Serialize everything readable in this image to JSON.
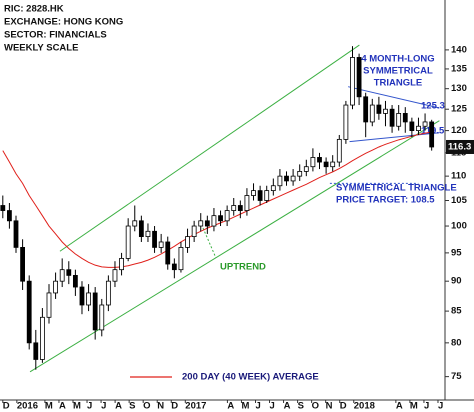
{
  "chart_data": {
    "type": "candlestick",
    "annotations": [
      "RIC: 2828.HK",
      "EXCHANGE: HONG KONG",
      "SECTOR: FINANCIALS",
      "WEEKLY SCALE"
    ],
    "triangle_note": [
      "4 MONTH-LONG",
      "SYMMETRICAL",
      "TRIANGLE"
    ],
    "target_note": [
      "SYMMETRICAL TRIANGLE",
      "PRICE TARGET: 108.5"
    ],
    "uptrend_note": "UPTREND",
    "log_scale": true,
    "xlim": [
      -0.2,
      31.5
    ],
    "ylim": [
      72,
      154
    ],
    "yticks": [
      75,
      80,
      85,
      90,
      95,
      100,
      105,
      110,
      115,
      120,
      125,
      130,
      135,
      140
    ],
    "xticks": [
      {
        "value": 0,
        "label": "D"
      },
      {
        "value": 1,
        "label": "2016"
      },
      {
        "value": 3,
        "label": "M"
      },
      {
        "value": 4,
        "label": "A"
      },
      {
        "value": 5,
        "label": "M"
      },
      {
        "value": 6,
        "label": "J"
      },
      {
        "value": 7,
        "label": "J"
      },
      {
        "value": 8,
        "label": "A"
      },
      {
        "value": 9,
        "label": "S"
      },
      {
        "value": 10,
        "label": "O"
      },
      {
        "value": 11,
        "label": "N"
      },
      {
        "value": 12,
        "label": "D"
      },
      {
        "value": 13,
        "label": "2017"
      },
      {
        "value": 16,
        "label": "A"
      },
      {
        "value": 17,
        "label": "M"
      },
      {
        "value": 18,
        "label": "J"
      },
      {
        "value": 19,
        "label": "J"
      },
      {
        "value": 20,
        "label": "A"
      },
      {
        "value": 21,
        "label": "S"
      },
      {
        "value": 22,
        "label": "O"
      },
      {
        "value": 23,
        "label": "N"
      },
      {
        "value": 24,
        "label": "D"
      },
      {
        "value": 25,
        "label": "2018"
      },
      {
        "value": 28,
        "label": "A"
      },
      {
        "value": 29,
        "label": "M"
      },
      {
        "value": 30,
        "label": "J"
      },
      {
        "value": 31,
        "label": "J"
      }
    ],
    "x": [
      0,
      0.47,
      0.94,
      1.41,
      1.88,
      2.35,
      2.82,
      3.29,
      3.76,
      4.23,
      4.7,
      5.17,
      5.64,
      6.11,
      6.58,
      7.05,
      7.52,
      7.99,
      8.46,
      8.93,
      9.4,
      9.87,
      10.34,
      10.81,
      11.28,
      11.75,
      12.22,
      12.69,
      13.16,
      13.63,
      14.1,
      14.57,
      15.04,
      15.51,
      15.98,
      16.45,
      16.92,
      17.39,
      17.86,
      18.33,
      18.8,
      19.27,
      19.74,
      20.21,
      20.68,
      21.15,
      21.62,
      22.09,
      22.56,
      23.03,
      23.5,
      23.97,
      24.44,
      24.91,
      25.38,
      25.85,
      26.32,
      26.79,
      27.26,
      27.73,
      28.2,
      28.67,
      29.14,
      29.61,
      30.08,
      30.55
    ],
    "series": [
      {
        "up_color": "#ffffff",
        "down_color": "#000000",
        "outline": "#000000",
        "open": [
          104,
          103,
          101,
          96,
          90,
          80,
          77.5,
          84,
          88,
          90,
          92,
          91,
          89,
          86,
          88,
          82,
          86,
          90,
          92,
          94,
          100,
          101,
          98,
          99,
          96,
          97,
          93,
          92,
          96,
          98,
          100,
          101,
          100,
          102,
          101,
          103,
          104,
          103,
          106,
          107,
          105,
          107,
          108,
          110,
          109,
          110,
          111,
          112,
          114,
          113,
          112,
          113,
          118,
          126,
          138,
          128,
          122,
          126,
          124,
          125,
          121,
          124,
          122,
          120,
          121,
          122
        ],
        "high": [
          106,
          104.5,
          102,
          97.5,
          91,
          82,
          85.5,
          89.5,
          91.5,
          94,
          93.5,
          92,
          90,
          89.5,
          89,
          87,
          91,
          93.5,
          95,
          101.5,
          104,
          102,
          100.5,
          100,
          98.5,
          98,
          94,
          97,
          99.5,
          101,
          102.5,
          102,
          103.5,
          103,
          104,
          105.5,
          105,
          107.5,
          108.5,
          108,
          108,
          109.5,
          111.5,
          111,
          111.5,
          112.5,
          113.5,
          116,
          115,
          114,
          114.5,
          119,
          127,
          141,
          139,
          129,
          127.5,
          128,
          127,
          126,
          126,
          125.5,
          123,
          123,
          124,
          122.5
        ],
        "low": [
          101.5,
          99.5,
          95,
          88.5,
          79,
          76,
          77,
          83,
          87,
          89,
          89.5,
          87.5,
          84.5,
          85,
          80.5,
          81,
          85,
          89,
          91,
          93.5,
          99,
          97,
          97,
          95,
          95,
          92,
          90.5,
          91.5,
          95,
          97,
          99,
          98.5,
          99,
          100,
          100,
          102,
          101.5,
          102,
          105,
          104,
          104.5,
          106,
          107,
          108,
          108,
          109,
          110,
          111,
          111.5,
          110.5,
          111,
          112,
          117,
          125,
          126,
          118.5,
          121,
          122.5,
          121,
          119.5,
          120,
          119.5,
          118.5,
          119,
          120,
          115.5
        ],
        "close": [
          103,
          101,
          96,
          90,
          80,
          77.5,
          84,
          88,
          90,
          92,
          91,
          89,
          86,
          88,
          82,
          86,
          90,
          92,
          94,
          100,
          101,
          98,
          99,
          96,
          97,
          93,
          92,
          96,
          98,
          100,
          101,
          100,
          102,
          101,
          103,
          104,
          103,
          106,
          107,
          105,
          107,
          108,
          110,
          109,
          110,
          111,
          112,
          114,
          113,
          112,
          113,
          118,
          126,
          138,
          128,
          122,
          126,
          124,
          125,
          121,
          124,
          122,
          120,
          121,
          122,
          116.3
        ]
      }
    ],
    "overlays": [
      {
        "name": "200 DAY (40 WEEK) AVERAGE",
        "color": "#e0201b",
        "values": [
          115.5,
          113,
          110.5,
          108.5,
          106,
          104,
          102,
          100,
          98.5,
          97,
          95.8,
          94.8,
          94,
          93.3,
          92.8,
          92.5,
          92.4,
          92.4,
          92.5,
          92.7,
          93,
          93.3,
          93.7,
          94.2,
          94.8,
          95.5,
          96.2,
          97,
          97.7,
          98.4,
          99,
          99.6,
          100.1,
          100.6,
          101.1,
          101.7,
          102.3,
          102.9,
          103.5,
          104.1,
          104.7,
          105.3,
          105.9,
          106.5,
          107.1,
          107.7,
          108.3,
          109,
          109.7,
          110.3,
          110.9,
          111.6,
          112.4,
          113.3,
          114.1,
          114.9,
          115.6,
          116.3,
          116.9,
          117.4,
          117.9,
          118.3,
          118.7,
          119.1,
          119.4,
          119.7
        ]
      }
    ],
    "trendlines": [
      {
        "color": "#3cb043",
        "x": [
          4.07,
          25.4
        ],
        "y": [
          95.3,
          141.3
        ]
      },
      {
        "color": "#3cb043",
        "x": [
          1.94,
          31.1
        ],
        "y": [
          75.7,
          122.3
        ]
      },
      {
        "color": "#3355cc",
        "x": [
          24.6,
          31.1
        ],
        "y": [
          130.5,
          125.3
        ]
      },
      {
        "color": "#3355cc",
        "x": [
          24.7,
          31.1
        ],
        "y": [
          117.5,
          119.5
        ]
      }
    ],
    "target": {
      "value": 108.5,
      "x": [
        23.3,
        29.6
      ],
      "color": "#3355cc"
    }
  }
}
